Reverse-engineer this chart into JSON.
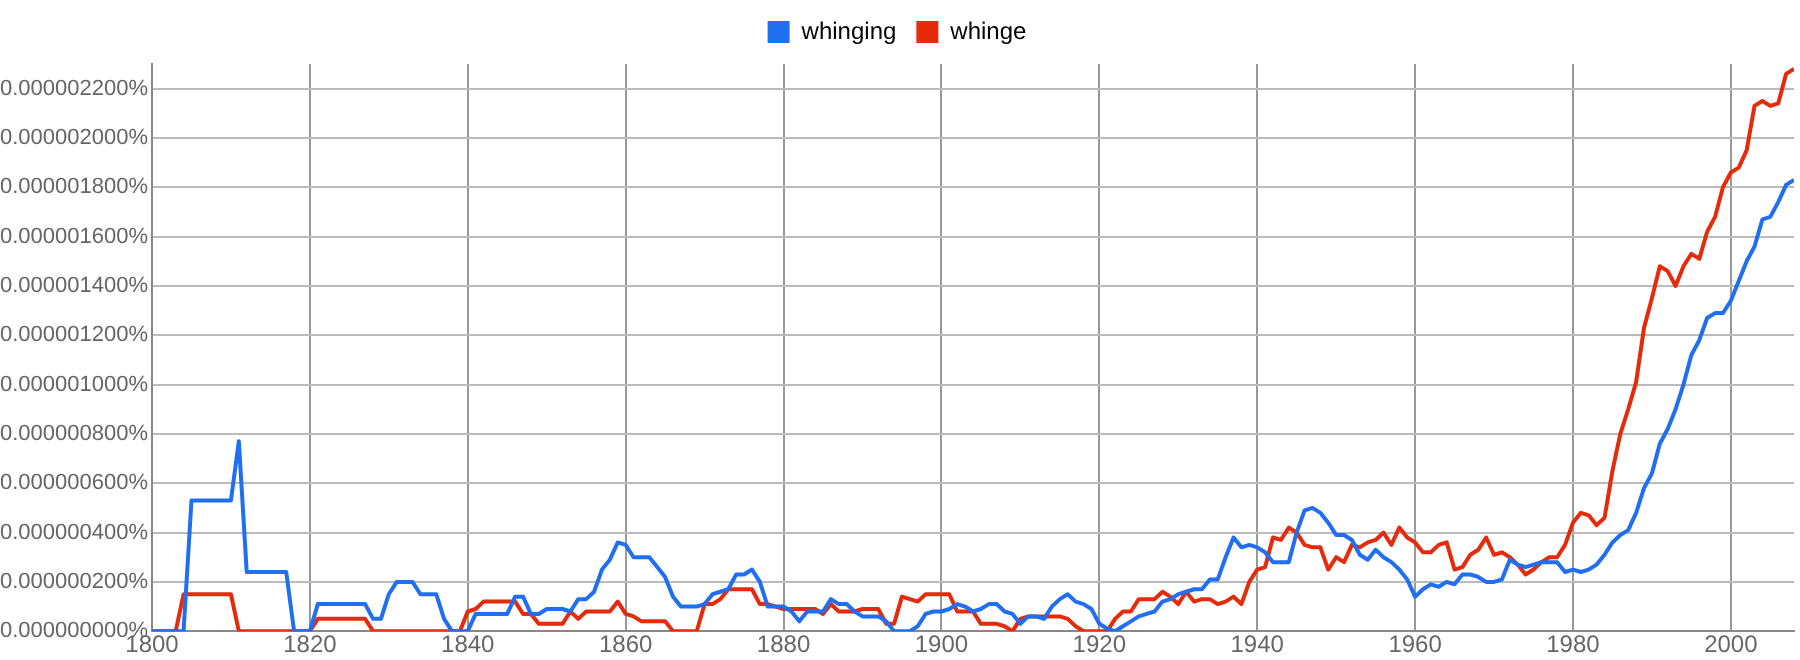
{
  "chart_data": {
    "type": "line",
    "x": [
      1800,
      1801,
      1802,
      1803,
      1804,
      1805,
      1806,
      1807,
      1808,
      1809,
      1810,
      1811,
      1812,
      1813,
      1814,
      1815,
      1816,
      1817,
      1818,
      1819,
      1820,
      1821,
      1822,
      1823,
      1824,
      1825,
      1826,
      1827,
      1828,
      1829,
      1830,
      1831,
      1832,
      1833,
      1834,
      1835,
      1836,
      1837,
      1838,
      1839,
      1840,
      1841,
      1842,
      1843,
      1844,
      1845,
      1846,
      1847,
      1848,
      1849,
      1850,
      1851,
      1852,
      1853,
      1854,
      1855,
      1856,
      1857,
      1858,
      1859,
      1860,
      1861,
      1862,
      1863,
      1864,
      1865,
      1866,
      1867,
      1868,
      1869,
      1870,
      1871,
      1872,
      1873,
      1874,
      1875,
      1876,
      1877,
      1878,
      1879,
      1880,
      1881,
      1882,
      1883,
      1884,
      1885,
      1886,
      1887,
      1888,
      1889,
      1890,
      1891,
      1892,
      1893,
      1894,
      1895,
      1896,
      1897,
      1898,
      1899,
      1900,
      1901,
      1902,
      1903,
      1904,
      1905,
      1906,
      1907,
      1908,
      1909,
      1910,
      1911,
      1912,
      1913,
      1914,
      1915,
      1916,
      1917,
      1918,
      1919,
      1920,
      1921,
      1922,
      1923,
      1924,
      1925,
      1926,
      1927,
      1928,
      1929,
      1930,
      1931,
      1932,
      1933,
      1934,
      1935,
      1936,
      1937,
      1938,
      1939,
      1940,
      1941,
      1942,
      1943,
      1944,
      1945,
      1946,
      1947,
      1948,
      1949,
      1950,
      1951,
      1952,
      1953,
      1954,
      1955,
      1956,
      1957,
      1958,
      1959,
      1960,
      1961,
      1962,
      1963,
      1964,
      1965,
      1966,
      1967,
      1968,
      1969,
      1970,
      1971,
      1972,
      1973,
      1974,
      1975,
      1976,
      1977,
      1978,
      1979,
      1980,
      1981,
      1982,
      1983,
      1984,
      1985,
      1986,
      1987,
      1988,
      1989,
      1990,
      1991,
      1992,
      1993,
      1994,
      1995,
      1996,
      1997,
      1998,
      1999,
      2000,
      2001,
      2002,
      2003,
      2004,
      2005,
      2006,
      2007,
      2008
    ],
    "series": [
      {
        "name": "whinging",
        "color": "#1f6ff0",
        "values": [
          0,
          0,
          0,
          0,
          0,
          5.3e-07,
          5.3e-07,
          5.3e-07,
          5.3e-07,
          5.3e-07,
          5.3e-07,
          7.7e-07,
          2.4e-07,
          2.4e-07,
          2.4e-07,
          2.4e-07,
          2.4e-07,
          2.4e-07,
          0,
          0,
          0,
          1.1e-07,
          1.1e-07,
          1.1e-07,
          1.1e-07,
          1.1e-07,
          1.1e-07,
          1.1e-07,
          5e-08,
          5e-08,
          1.5e-07,
          2e-07,
          2e-07,
          2e-07,
          1.5e-07,
          1.5e-07,
          1.5e-07,
          5e-08,
          0,
          0,
          0,
          7e-08,
          7e-08,
          7e-08,
          7e-08,
          7e-08,
          1.4e-07,
          1.4e-07,
          7e-08,
          7e-08,
          9e-08,
          9e-08,
          9e-08,
          8e-08,
          1.3e-07,
          1.3e-07,
          1.6e-07,
          2.5e-07,
          2.9e-07,
          3.6e-07,
          3.5e-07,
          3e-07,
          3e-07,
          3e-07,
          2.6e-07,
          2.2e-07,
          1.4e-07,
          1e-07,
          1e-07,
          1e-07,
          1.1e-07,
          1.5e-07,
          1.6e-07,
          1.7e-07,
          2.3e-07,
          2.3e-07,
          2.5e-07,
          2e-07,
          1e-07,
          1e-07,
          1e-07,
          8e-08,
          4e-08,
          8e-08,
          8e-08,
          8e-08,
          1.3e-07,
          1.1e-07,
          1.1e-07,
          8e-08,
          6e-08,
          6e-08,
          6e-08,
          4e-08,
          0,
          0,
          0,
          2e-08,
          7e-08,
          8e-08,
          8e-08,
          9e-08,
          1.1e-07,
          1e-07,
          8e-08,
          9e-08,
          1.1e-07,
          1.1e-07,
          8e-08,
          7e-08,
          3e-08,
          6e-08,
          6e-08,
          5e-08,
          1e-07,
          1.3e-07,
          1.5e-07,
          1.2e-07,
          1.1e-07,
          9e-08,
          3e-08,
          1e-08,
          0,
          2e-08,
          4e-08,
          6e-08,
          7e-08,
          8e-08,
          1.2e-07,
          1.3e-07,
          1.5e-07,
          1.6e-07,
          1.7e-07,
          1.7e-07,
          2.1e-07,
          2.1e-07,
          3e-07,
          3.8e-07,
          3.4e-07,
          3.5e-07,
          3.4e-07,
          3.2e-07,
          2.8e-07,
          2.8e-07,
          2.8e-07,
          4e-07,
          4.9e-07,
          5e-07,
          4.8e-07,
          4.4e-07,
          3.9e-07,
          3.9e-07,
          3.7e-07,
          3.1e-07,
          2.9e-07,
          3.3e-07,
          3e-07,
          2.8e-07,
          2.5e-07,
          2.1e-07,
          1.4e-07,
          1.7e-07,
          1.9e-07,
          1.8e-07,
          2e-07,
          1.9e-07,
          2.3e-07,
          2.3e-07,
          2.2e-07,
          2e-07,
          2e-07,
          2.1e-07,
          2.9e-07,
          2.7e-07,
          2.6e-07,
          2.7e-07,
          2.8e-07,
          2.8e-07,
          2.8e-07,
          2.4e-07,
          2.5e-07,
          2.4e-07,
          2.5e-07,
          2.7e-07,
          3.1e-07,
          3.6e-07,
          3.9e-07,
          4.1e-07,
          4.8e-07,
          5.8e-07,
          6.4e-07,
          7.6e-07,
          8.2e-07,
          9e-07,
          1e-06,
          1.12e-06,
          1.18e-06,
          1.27e-06,
          1.29e-06,
          1.29e-06,
          1.34e-06,
          1.42e-06,
          1.5e-06,
          1.56e-06,
          1.67e-06,
          1.68e-06,
          1.74e-06,
          1.81e-06,
          1.83e-06
        ]
      },
      {
        "name": "whinge",
        "color": "#e52b0b",
        "values": [
          0,
          0,
          0,
          0,
          1.5e-07,
          1.5e-07,
          1.5e-07,
          1.5e-07,
          1.5e-07,
          1.5e-07,
          1.5e-07,
          0,
          0,
          0,
          0,
          0,
          0,
          0,
          0,
          0,
          0,
          5e-08,
          5e-08,
          5e-08,
          5e-08,
          5e-08,
          5e-08,
          5e-08,
          0,
          0,
          0,
          0,
          0,
          0,
          0,
          0,
          0,
          0,
          0,
          0,
          8e-08,
          9e-08,
          1.2e-07,
          1.2e-07,
          1.2e-07,
          1.2e-07,
          1.2e-07,
          7e-08,
          7e-08,
          3e-08,
          3e-08,
          3e-08,
          3e-08,
          8e-08,
          5e-08,
          8e-08,
          8e-08,
          8e-08,
          8e-08,
          1.2e-07,
          7e-08,
          6e-08,
          4e-08,
          4e-08,
          4e-08,
          4e-08,
          0,
          0,
          0,
          0,
          1.1e-07,
          1.1e-07,
          1.3e-07,
          1.7e-07,
          1.7e-07,
          1.7e-07,
          1.7e-07,
          1.1e-07,
          1.1e-07,
          1e-07,
          9e-08,
          9e-08,
          9e-08,
          9e-08,
          9e-08,
          7e-08,
          1.1e-07,
          8e-08,
          8e-08,
          8e-08,
          9e-08,
          9e-08,
          9e-08,
          3e-08,
          3e-08,
          1.4e-07,
          1.3e-07,
          1.2e-07,
          1.5e-07,
          1.5e-07,
          1.5e-07,
          1.5e-07,
          8e-08,
          8e-08,
          8e-08,
          3e-08,
          3e-08,
          3e-08,
          2e-08,
          0,
          5e-08,
          6e-08,
          6e-08,
          6e-08,
          6e-08,
          6e-08,
          5e-08,
          2e-08,
          0,
          0,
          0,
          0,
          5e-08,
          8e-08,
          8e-08,
          1.3e-07,
          1.3e-07,
          1.3e-07,
          1.6e-07,
          1.4e-07,
          1.1e-07,
          1.6e-07,
          1.2e-07,
          1.3e-07,
          1.3e-07,
          1.1e-07,
          1.2e-07,
          1.4e-07,
          1.1e-07,
          2e-07,
          2.5e-07,
          2.6e-07,
          3.8e-07,
          3.7e-07,
          4.2e-07,
          4e-07,
          3.5e-07,
          3.4e-07,
          3.4e-07,
          2.5e-07,
          3e-07,
          2.8e-07,
          3.5e-07,
          3.4e-07,
          3.6e-07,
          3.7e-07,
          4e-07,
          3.5e-07,
          4.2e-07,
          3.8e-07,
          3.6e-07,
          3.2e-07,
          3.2e-07,
          3.5e-07,
          3.6e-07,
          2.5e-07,
          2.6e-07,
          3.1e-07,
          3.3e-07,
          3.8e-07,
          3.1e-07,
          3.2e-07,
          3e-07,
          2.7e-07,
          2.3e-07,
          2.5e-07,
          2.8e-07,
          3e-07,
          3e-07,
          3.5e-07,
          4.4e-07,
          4.8e-07,
          4.7e-07,
          4.3e-07,
          4.6e-07,
          6.5e-07,
          8e-07,
          9e-07,
          1.01e-06,
          1.23e-06,
          1.35e-06,
          1.48e-06,
          1.46e-06,
          1.4e-06,
          1.48e-06,
          1.53e-06,
          1.51e-06,
          1.62e-06,
          1.68e-06,
          1.8e-06,
          1.86e-06,
          1.88e-06,
          1.95e-06,
          2.13e-06,
          2.15e-06,
          2.13e-06,
          2.14e-06,
          2.26e-06,
          2.28e-06
        ]
      }
    ],
    "xlim": [
      1800,
      2008
    ],
    "xticks": [
      1800,
      1820,
      1840,
      1860,
      1880,
      1900,
      1920,
      1940,
      1960,
      1980,
      2000
    ],
    "ylim": [
      0,
      2.3e-06
    ],
    "yticks": [
      {
        "value": 0,
        "label": "0.000000000%"
      },
      {
        "value": 2e-07,
        "label": "0.000000200%"
      },
      {
        "value": 4e-07,
        "label": "0.000000400%"
      },
      {
        "value": 6e-07,
        "label": "0.000000600%"
      },
      {
        "value": 8e-07,
        "label": "0.000000800%"
      },
      {
        "value": 1e-06,
        "label": "0.000001000%"
      },
      {
        "value": 1.2e-06,
        "label": "0.000001200%"
      },
      {
        "value": 1.4e-06,
        "label": "0.000001400%"
      },
      {
        "value": 1.6e-06,
        "label": "0.000001600%"
      },
      {
        "value": 1.8e-06,
        "label": "0.000001800%"
      },
      {
        "value": 2e-06,
        "label": "0.000002000%"
      },
      {
        "value": 2.2e-06,
        "label": "0.000002200%"
      }
    ],
    "grid": true,
    "legend": "top",
    "marker": "none",
    "line_style": "solid"
  }
}
